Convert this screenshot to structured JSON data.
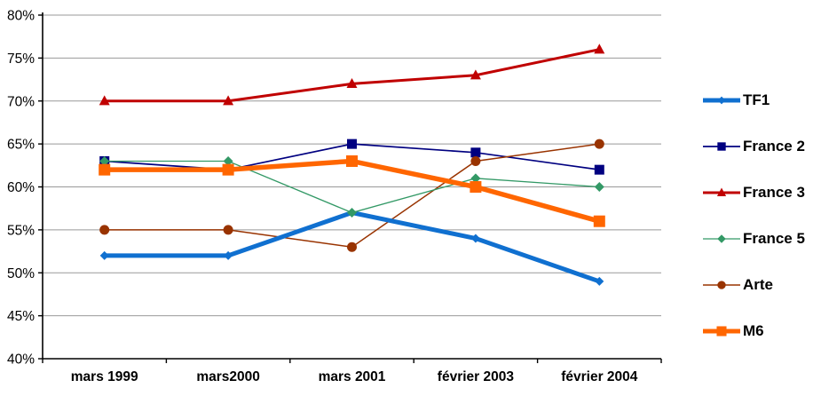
{
  "chart_data": {
    "type": "line",
    "title": "",
    "xlabel": "",
    "ylabel": "",
    "categories": [
      "mars 1999",
      "mars2000",
      "mars 2001",
      "février 2003",
      "février 2004"
    ],
    "series": [
      {
        "name": "TF1",
        "color": "#1070D0",
        "marker": "diamond",
        "line_width": 5,
        "marker_size": 9,
        "values": [
          52,
          52,
          57,
          54,
          49
        ]
      },
      {
        "name": "France 2",
        "color": "#000080",
        "marker": "square",
        "line_width": 1.7,
        "marker_size": 11,
        "values": [
          63,
          62,
          65,
          64,
          62
        ]
      },
      {
        "name": "France 3",
        "color": "#C00000",
        "marker": "triangle",
        "line_width": 3,
        "marker_size": 12,
        "values": [
          70,
          70,
          72,
          73,
          76
        ]
      },
      {
        "name": "France 5",
        "color": "#339966",
        "marker": "diamond",
        "line_width": 1.3,
        "marker_size": 10,
        "values": [
          63,
          63,
          57,
          61,
          60
        ]
      },
      {
        "name": "Arte",
        "color": "#993300",
        "marker": "circle",
        "line_width": 1.5,
        "marker_size": 11,
        "values": [
          55,
          55,
          53,
          63,
          65
        ]
      },
      {
        "name": "M6",
        "color": "#FF6600",
        "marker": "square",
        "line_width": 5.5,
        "marker_size": 13,
        "values": [
          62,
          62,
          63,
          60,
          56
        ]
      }
    ],
    "draw_order": [
      1,
      2,
      4,
      0,
      3,
      5
    ],
    "y_axis": {
      "min": 40,
      "max": 80,
      "step": 5,
      "tick_labels": [
        "40%",
        "45%",
        "50%",
        "55%",
        "60%",
        "65%",
        "70%",
        "75%",
        "80%"
      ]
    },
    "legend": {
      "position": "right",
      "entries": [
        "TF1",
        "France 2",
        "France 3",
        "France 5",
        "Arte",
        "M6"
      ]
    },
    "colors": {
      "grid": "#999999",
      "axis": "#000000",
      "text": "#000000",
      "background": "#FFFFFF"
    }
  }
}
